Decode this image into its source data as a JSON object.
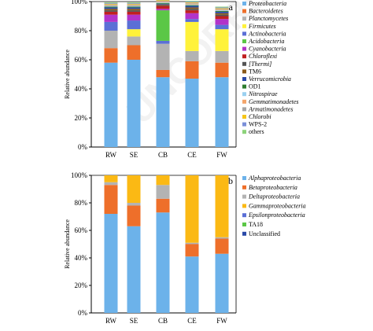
{
  "chart_data": [
    {
      "type": "bar",
      "stacked": true,
      "panel": "a",
      "ylabel": "Relative abundance",
      "ylim": [
        0,
        100
      ],
      "yticks": [
        "0%",
        "20%",
        "40%",
        "60%",
        "80%",
        "100%"
      ],
      "categories": [
        "RW",
        "SE",
        "CB",
        "CE",
        "FW"
      ],
      "legend_position": "right",
      "series": [
        {
          "name": "Proteobacteria",
          "italic": true,
          "color": "#6cb2ea",
          "values": [
            58,
            60,
            48,
            47,
            48
          ]
        },
        {
          "name": "Bacteroidetes",
          "italic": true,
          "color": "#ee6f2a",
          "values": [
            10,
            10,
            5,
            12,
            10
          ]
        },
        {
          "name": "Planctomycetes",
          "italic": true,
          "color": "#b3b3b3",
          "values": [
            12,
            6,
            18,
            7,
            8
          ]
        },
        {
          "name": "Firmicutes",
          "italic": true,
          "color": "#fff23a",
          "values": [
            0,
            5,
            0,
            20,
            15
          ]
        },
        {
          "name": "Actinobacteria",
          "italic": true,
          "color": "#5b6fd6",
          "values": [
            6,
            6,
            2,
            2,
            3
          ]
        },
        {
          "name": "Acidobacteria",
          "italic": true,
          "color": "#5bc746",
          "values": [
            0,
            0,
            21,
            0,
            0
          ]
        },
        {
          "name": "Cyanobacteria",
          "italic": true,
          "color": "#b233c9",
          "values": [
            5,
            4,
            1,
            4,
            4
          ]
        },
        {
          "name": "Chloroflexi",
          "italic": true,
          "color": "#c02020",
          "values": [
            2,
            2,
            2,
            2,
            2
          ]
        },
        {
          "name": "[Thermi]",
          "italic": true,
          "color": "#555555",
          "values": [
            1,
            1,
            0.5,
            1,
            1
          ]
        },
        {
          "name": "TM6",
          "italic": false,
          "color": "#8a5a1a",
          "values": [
            1,
            1,
            0.5,
            1,
            1
          ]
        },
        {
          "name": "Verrucomicrobia",
          "italic": true,
          "color": "#2a4aa8",
          "values": [
            1,
            1,
            0.5,
            1,
            1
          ]
        },
        {
          "name": "OD1",
          "italic": false,
          "color": "#2e7d2e",
          "values": [
            0.5,
            0.5,
            0.5,
            0.5,
            0.5
          ]
        },
        {
          "name": "Nitrospirae",
          "italic": true,
          "color": "#9bd0f0",
          "values": [
            0.5,
            0.5,
            0.5,
            0.5,
            0.5
          ]
        },
        {
          "name": "Gemmatimonadetes",
          "italic": true,
          "color": "#f4a56a",
          "values": [
            0.5,
            0.5,
            0.5,
            0.5,
            0.5
          ]
        },
        {
          "name": "Armatimonadetes",
          "italic": true,
          "color": "#a6a6a6",
          "values": [
            0.5,
            0.5,
            0.5,
            0.5,
            0.5
          ]
        },
        {
          "name": "Chlorobi",
          "italic": true,
          "color": "#f5c518",
          "values": [
            0.5,
            0.5,
            0.5,
            0.5,
            0.5
          ]
        },
        {
          "name": "WPS-2",
          "italic": false,
          "color": "#7a8fd8",
          "values": [
            0.5,
            0.5,
            0.5,
            0.5,
            0.5
          ]
        },
        {
          "name": "others",
          "italic": false,
          "color": "#8cd37a",
          "values": [
            0.5,
            0.5,
            0.5,
            0.5,
            0.5
          ]
        }
      ]
    },
    {
      "type": "bar",
      "stacked": true,
      "panel": "b",
      "ylabel": "Relative abundance",
      "ylim": [
        0,
        100
      ],
      "yticks": [
        "0%",
        "20%",
        "40%",
        "60%",
        "80%",
        "100%"
      ],
      "categories": [
        "RW",
        "SE",
        "CB",
        "CE",
        "FW"
      ],
      "legend_position": "right",
      "series": [
        {
          "name": "Alphaproteobacteria",
          "italic": true,
          "color": "#6cb2ea",
          "values": [
            72,
            63,
            73,
            41,
            43
          ]
        },
        {
          "name": "Betaproteobacteria",
          "italic": true,
          "color": "#ee6f2a",
          "values": [
            21,
            15,
            10,
            9,
            11
          ]
        },
        {
          "name": "Deltaproteobacteria",
          "italic": true,
          "color": "#b3b3b3",
          "values": [
            2,
            2,
            10,
            1,
            1
          ]
        },
        {
          "name": "Gammaproteobacteria",
          "italic": true,
          "color": "#fbb914",
          "values": [
            5,
            20,
            7,
            49,
            45
          ]
        },
        {
          "name": "Epsilonproteobacteria",
          "italic": true,
          "color": "#5b6fd6",
          "values": [
            0,
            0,
            0,
            0,
            0
          ]
        },
        {
          "name": "TA18",
          "italic": false,
          "color": "#5bc746",
          "values": [
            0,
            0,
            0,
            0,
            0
          ]
        },
        {
          "name": "Unclassified",
          "italic": false,
          "color": "#2a4aa8",
          "values": [
            0,
            0,
            0,
            0,
            0
          ]
        }
      ]
    }
  ]
}
